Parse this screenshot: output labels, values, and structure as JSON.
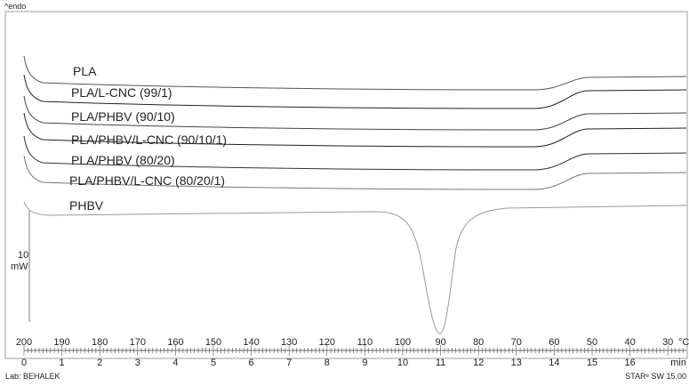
{
  "chart_data": {
    "type": "line",
    "header_label": "^endo",
    "scale_bar": {
      "value": "10",
      "unit": "mW"
    },
    "x_axis_temperature": {
      "unit": "°C",
      "ticks": [
        "200",
        "190",
        "180",
        "170",
        "160",
        "150",
        "140",
        "130",
        "120",
        "110",
        "100",
        "90",
        "80",
        "70",
        "60",
        "50",
        "40",
        "30"
      ]
    },
    "x_axis_time": {
      "unit": "min",
      "ticks": [
        "0",
        "1",
        "2",
        "3",
        "4",
        "5",
        "6",
        "7",
        "8",
        "9",
        "10",
        "11",
        "12",
        "13",
        "14",
        "15",
        "16"
      ]
    },
    "series": [
      {
        "name": "PLA",
        "color": "#555555",
        "type": "glass"
      },
      {
        "name": "PLA/L-CNC (99/1)",
        "color": "#222222",
        "type": "glass"
      },
      {
        "name": "PLA/PHBV (90/10)",
        "color": "#444444",
        "type": "glass"
      },
      {
        "name": "PLA/PHBV/L-CNC (90/10/1)",
        "color": "#222222",
        "type": "glass"
      },
      {
        "name": "PLA/PHBV (80/20)",
        "color": "#333333",
        "type": "glass"
      },
      {
        "name": "PLA/PHBV/L-CNC (80/20/1)",
        "color": "#777777",
        "type": "glass"
      },
      {
        "name": "PHBV",
        "color": "#999999",
        "type": "crystallization",
        "peak_temperature": 90
      }
    ],
    "footer_left": "Lab: BEHALEK",
    "footer_right": "STARᵉ SW 15.00"
  }
}
